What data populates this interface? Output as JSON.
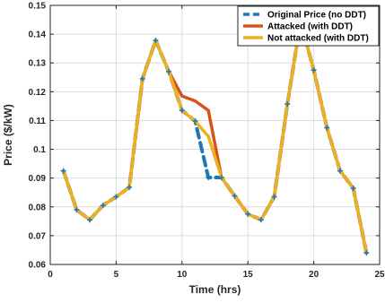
{
  "chart_data": {
    "type": "line",
    "xlabel": "Time (hrs)",
    "ylabel": "Price ($/kW)",
    "xlim": [
      0,
      25
    ],
    "ylim": [
      0.06,
      0.15
    ],
    "xticks": [
      0,
      5,
      10,
      15,
      20,
      25
    ],
    "yticks": [
      0.06,
      0.07,
      0.08,
      0.09,
      0.1,
      0.11,
      0.12,
      0.13,
      0.14,
      0.15
    ],
    "xtick_labels": [
      "0",
      "5",
      "10",
      "15",
      "20",
      "25"
    ],
    "ytick_labels": [
      "0.06",
      "0.07",
      "0.08",
      "0.09",
      "0.1",
      "0.11",
      "0.12",
      "0.13",
      "0.14",
      "0.15"
    ],
    "grid": true,
    "legend_position": "top-right",
    "x": [
      1,
      2,
      3,
      4,
      5,
      6,
      7,
      8,
      9,
      10,
      11,
      12,
      13,
      14,
      15,
      16,
      17,
      18,
      19,
      20,
      21,
      22,
      23,
      24
    ],
    "series": [
      {
        "name": "Original Price (no DDT)",
        "color": "#1f77b4",
        "style": "dashed",
        "values": [
          0.0925,
          0.079,
          0.0755,
          0.0805,
          0.0835,
          0.0868,
          0.1245,
          0.1378,
          0.127,
          0.1135,
          0.1098,
          0.0902,
          0.0902,
          0.0838,
          0.0775,
          0.0755,
          0.0835,
          0.1157,
          0.1445,
          0.1275,
          0.1075,
          0.0925,
          0.0865,
          0.064
        ]
      },
      {
        "name": "Attacked (with DDT)",
        "color": "#d95319",
        "style": "solid",
        "values": [
          0.0925,
          0.079,
          0.0755,
          0.0805,
          0.0835,
          0.0868,
          0.1245,
          0.1378,
          0.127,
          0.1185,
          0.1168,
          0.1135,
          0.0902,
          0.0838,
          0.0775,
          0.0755,
          0.0835,
          0.1157,
          0.1445,
          0.1275,
          0.1075,
          0.0925,
          0.0865,
          0.064
        ]
      },
      {
        "name": "Not attacked (with DDT)",
        "color": "#edb120",
        "style": "solid",
        "values": [
          0.0925,
          0.079,
          0.0755,
          0.0805,
          0.0835,
          0.0868,
          0.1245,
          0.1378,
          0.127,
          0.1135,
          0.1098,
          0.1045,
          0.0902,
          0.0838,
          0.0775,
          0.0755,
          0.0835,
          0.1157,
          0.1445,
          0.1275,
          0.1075,
          0.0925,
          0.0865,
          0.064
        ]
      }
    ]
  }
}
